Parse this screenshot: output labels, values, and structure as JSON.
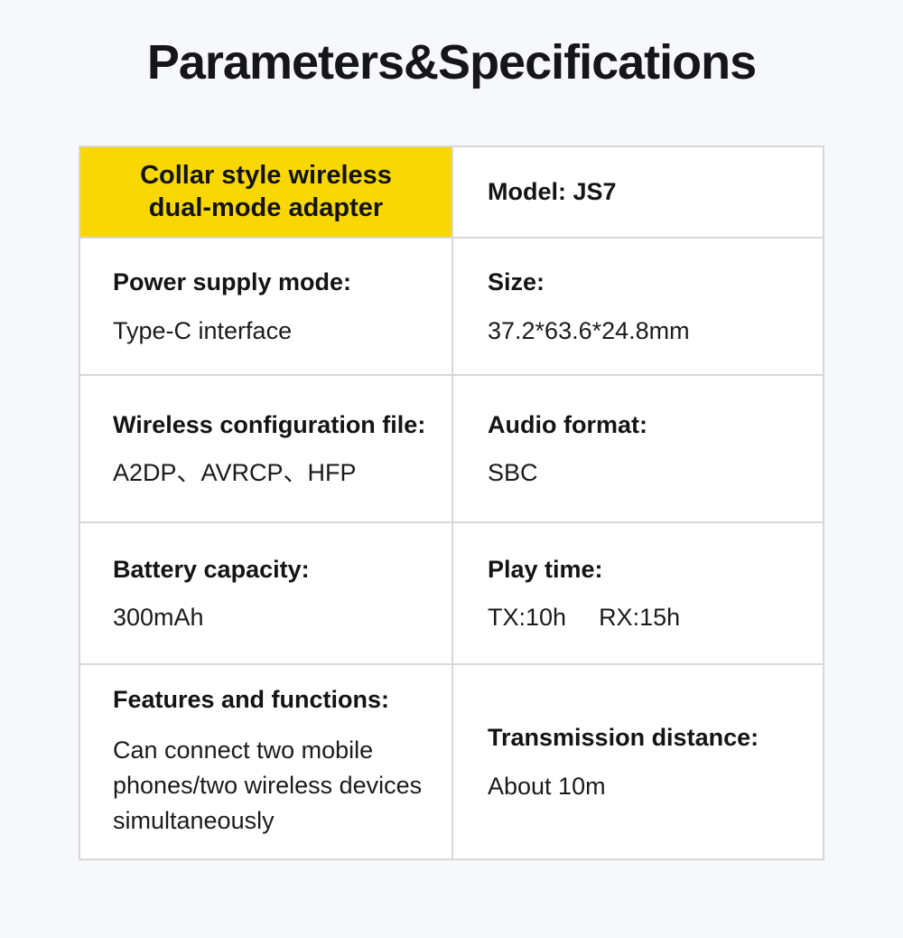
{
  "page": {
    "title": "Parameters&Specifications",
    "background_color": "#f7f8fc",
    "title_color": "#15151c"
  },
  "table": {
    "border_color": "#d8d8d8",
    "cell_background": "#ffffff",
    "highlight_background": "#f8d705",
    "rows": [
      {
        "left": {
          "lines": [
            "Collar style wireless",
            "dual-mode adapter"
          ]
        },
        "right": {
          "label": "Model: JS7"
        }
      },
      {
        "left": {
          "label": "Power supply mode:",
          "value": "Type-C interface"
        },
        "right": {
          "label": "Size:",
          "value": "37.2*63.6*24.8mm"
        }
      },
      {
        "left": {
          "label": "Wireless configuration file:",
          "value": "A2DP、AVRCP、HFP"
        },
        "right": {
          "label": "Audio format:",
          "value": "SBC"
        }
      },
      {
        "left": {
          "label": "Battery capacity:",
          "value": "300mAh"
        },
        "right": {
          "label": "Play time:",
          "value_tx": "TX:10h",
          "value_rx": "RX:15h"
        }
      },
      {
        "left": {
          "label": "Features and functions:",
          "value": "Can connect two mobile phones/two wireless devices simultaneously"
        },
        "right": {
          "label": "Transmission distance:",
          "value": "About 10m"
        }
      }
    ]
  }
}
